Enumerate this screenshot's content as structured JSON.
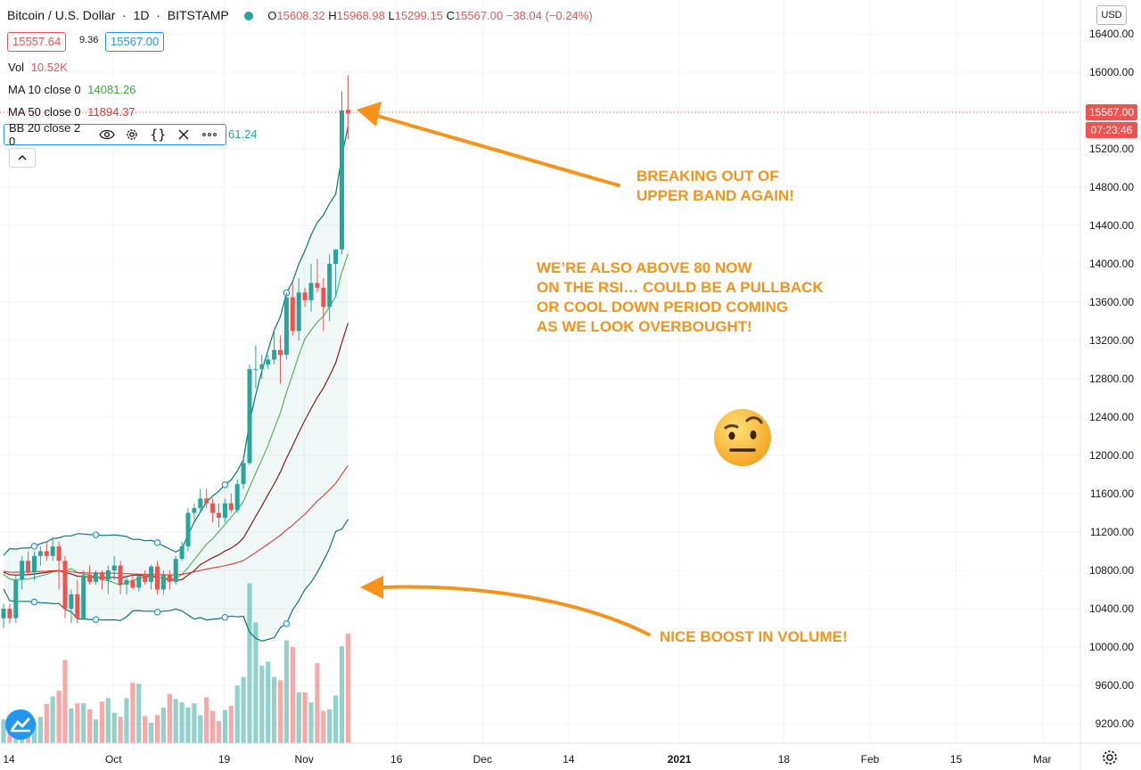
{
  "header": {
    "symbol": "Bitcoin / U.S. Dollar",
    "interval": "1D",
    "exchange": "BITSTAMP",
    "open_label": "O",
    "open": "15608.32",
    "high_label": "H",
    "high": "15968.98",
    "low_label": "L",
    "low": "15299.15",
    "close_label": "C",
    "close": "15567.00",
    "change": "−38.04 (−0.24%)",
    "bid": "15557.64",
    "spread": "9.36",
    "ask": "15567.00",
    "status_color": "#26a69a"
  },
  "indicators": {
    "vol_label": "Vol",
    "vol_value": "10.52K",
    "ma10_label": "MA 10 close 0",
    "ma10_value": "14081.26",
    "ma50_label": "MA 50 close 0",
    "ma50_value": "11894.37",
    "bb_label": "BB 20 close 2 0",
    "bb_value": "61.24"
  },
  "price_axis": {
    "currency": "USD",
    "last_price": "15567.00",
    "countdown": "07:23:46"
  },
  "annotations": {
    "breakout_line1": "BREAKING OUT OF",
    "breakout_line2": "UPPER BAND AGAIN!",
    "rsi_line1": "WE’RE ALSO ABOVE 80 NOW",
    "rsi_line2": "ON THE RSI… COULD BE A PULLBACK",
    "rsi_line3": "OR COOL DOWN PERIOD COMING",
    "rsi_line4": "AS WE LOOK OVERBOUGHT!",
    "volume": "NICE BOOST IN VOLUME!",
    "emoji": "face-with-raised-eyebrow",
    "accent_color": "#f7931a"
  },
  "chart_data": {
    "type": "candlestick",
    "up_color": "#26a69a",
    "down_color": "#ef5350",
    "ylim": [
      9000,
      16500
    ],
    "y_ticks": [
      9200,
      9600,
      10000,
      10400,
      10800,
      11200,
      11600,
      12000,
      12400,
      12800,
      13200,
      13600,
      14000,
      14400,
      14800,
      15200,
      15600,
      16000,
      16400
    ],
    "x_ticks": [
      {
        "label": "14",
        "day": 0
      },
      {
        "label": "Oct",
        "day": 17
      },
      {
        "label": "19",
        "day": 35
      },
      {
        "label": "Nov",
        "day": 48
      },
      {
        "label": "16",
        "day": 63
      },
      {
        "label": "Dec",
        "day": 77
      },
      {
        "label": "14",
        "day": 91
      },
      {
        "label": "2021",
        "day": 109
      },
      {
        "label": "18",
        "day": 126
      },
      {
        "label": "Feb",
        "day": 140
      },
      {
        "label": "15",
        "day": 154
      },
      {
        "label": "Mar",
        "day": 168
      }
    ],
    "candles": [
      [
        10300,
        10450,
        10200,
        10400
      ],
      [
        10400,
        10450,
        10250,
        10300
      ],
      [
        10300,
        10750,
        10250,
        10700
      ],
      [
        10700,
        10950,
        10600,
        10900
      ],
      [
        10900,
        11000,
        10750,
        10780
      ],
      [
        10780,
        11000,
        10700,
        10950
      ],
      [
        10950,
        11050,
        10850,
        11000
      ],
      [
        11000,
        11100,
        10900,
        10950
      ],
      [
        10950,
        11150,
        10900,
        11050
      ],
      [
        11050,
        11100,
        10600,
        10900
      ],
      [
        10900,
        10950,
        10300,
        10400
      ],
      [
        10400,
        10600,
        10250,
        10550
      ],
      [
        10550,
        10700,
        10250,
        10300
      ],
      [
        10300,
        10800,
        10280,
        10750
      ],
      [
        10750,
        10850,
        10650,
        10680
      ],
      [
        10680,
        10800,
        10650,
        10780
      ],
      [
        10780,
        10800,
        10600,
        10700
      ],
      [
        10700,
        10850,
        10550,
        10800
      ],
      [
        10800,
        10950,
        10700,
        10850
      ],
      [
        10850,
        10900,
        10550,
        10650
      ],
      [
        10650,
        10750,
        10550,
        10700
      ],
      [
        10700,
        10750,
        10600,
        10620
      ],
      [
        10620,
        10760,
        10580,
        10740
      ],
      [
        10740,
        10800,
        10650,
        10680
      ],
      [
        10680,
        10860,
        10600,
        10840
      ],
      [
        10840,
        10900,
        10550,
        10600
      ],
      [
        10600,
        10800,
        10550,
        10750
      ],
      [
        10750,
        10800,
        10600,
        10680
      ],
      [
        10680,
        10950,
        10650,
        10920
      ],
      [
        10920,
        11100,
        10900,
        11050
      ],
      [
        11050,
        11450,
        11000,
        11400
      ],
      [
        11400,
        11500,
        11300,
        11450
      ],
      [
        11450,
        11650,
        11400,
        11550
      ],
      [
        11550,
        11650,
        11450,
        11500
      ],
      [
        11500,
        11550,
        11300,
        11400
      ],
      [
        11400,
        11500,
        11250,
        11350
      ],
      [
        11350,
        11550,
        11300,
        11500
      ],
      [
        11500,
        11600,
        11400,
        11430
      ],
      [
        11430,
        11750,
        11400,
        11700
      ],
      [
        11700,
        12000,
        11650,
        11920
      ],
      [
        11920,
        12950,
        11900,
        12900
      ],
      [
        12900,
        13150,
        12700,
        12900
      ],
      [
        12900,
        13050,
        12800,
        12950
      ],
      [
        12950,
        13050,
        12900,
        13000
      ],
      [
        13000,
        13300,
        12950,
        13100
      ],
      [
        13100,
        13250,
        12750,
        13050
      ],
      [
        13050,
        13700,
        13000,
        13650
      ],
      [
        13650,
        13800,
        13250,
        13300
      ],
      [
        13300,
        13850,
        13200,
        13700
      ],
      [
        13700,
        13750,
        13550,
        13620
      ],
      [
        13620,
        14000,
        13500,
        13800
      ],
      [
        13800,
        14050,
        13700,
        13750
      ],
      [
        13750,
        13850,
        13300,
        13550
      ],
      [
        13550,
        14100,
        13400,
        14000
      ],
      [
        14000,
        14150,
        13650,
        14150
      ],
      [
        14150,
        15800,
        14100,
        15600
      ],
      [
        15608.32,
        15968.98,
        15299.15,
        15567
      ]
    ],
    "volume": [
      0.28,
      0.33,
      0.35,
      0.29,
      0.31,
      0.25,
      0.31,
      0.46,
      0.55,
      0.62,
      0.98,
      0.41,
      0.47,
      0.47,
      0.4,
      0.28,
      0.49,
      0.53,
      0.36,
      0.31,
      0.53,
      0.71,
      0.7,
      0.32,
      0.24,
      0.33,
      0.42,
      0.58,
      0.52,
      0.48,
      0.42,
      0.47,
      0.33,
      0.54,
      0.38,
      0.26,
      0.39,
      0.44,
      0.68,
      0.78,
      1.88,
      1.42,
      0.91,
      0.96,
      0.78,
      0.74,
      1.21,
      1.13,
      0.6,
      0.6,
      0.48,
      0.94,
      0.38,
      0.4,
      0.56,
      1.14,
      1.29
    ],
    "volume_max": 2.2
  }
}
